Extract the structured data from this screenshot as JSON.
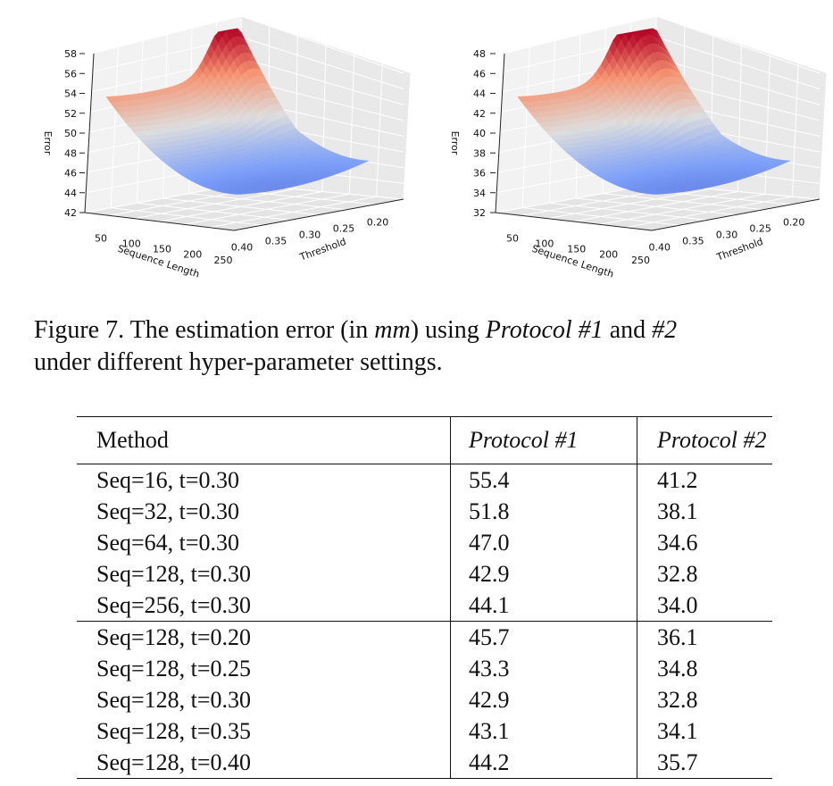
{
  "chart_data": [
    {
      "type": "surface3d",
      "title": "",
      "xlabel": "Sequence Length",
      "ylabel": "Threshold",
      "zlabel": "Error",
      "x_ticks": [
        "50",
        "100",
        "150",
        "200",
        "250"
      ],
      "y_ticks": [
        "0.20",
        "0.25",
        "0.30",
        "0.35",
        "0.40"
      ],
      "z_ticks": [
        "42",
        "44",
        "46",
        "48",
        "50",
        "52",
        "54",
        "56",
        "58"
      ],
      "zlim": [
        42,
        58
      ],
      "colormap": "coolwarm",
      "z_max_approx": 58,
      "z_min_approx": 42.9
    },
    {
      "type": "surface3d",
      "title": "",
      "xlabel": "Sequence Length",
      "ylabel": "Threshold",
      "zlabel": "Error",
      "x_ticks": [
        "50",
        "100",
        "150",
        "200",
        "250"
      ],
      "y_ticks": [
        "0.20",
        "0.25",
        "0.30",
        "0.35",
        "0.40"
      ],
      "z_ticks": [
        "32",
        "34",
        "36",
        "38",
        "40",
        "42",
        "44",
        "46",
        "48"
      ],
      "zlim": [
        32,
        48
      ],
      "colormap": "coolwarm",
      "z_max_approx": 48,
      "z_min_approx": 32.8
    }
  ],
  "caption": {
    "prefix": "Figure 7. The estimation error (in ",
    "unit": "mm",
    "middle": ") using ",
    "p1": "Protocol #1",
    "and": " and ",
    "p2": "#2",
    "line2": "under different hyper-parameter settings."
  },
  "table": {
    "headers": [
      "Method",
      "Protocol #1",
      "Protocol #2"
    ],
    "block1": [
      [
        "Seq=16, t=0.30",
        "55.4",
        "41.2"
      ],
      [
        "Seq=32, t=0.30",
        "51.8",
        "38.1"
      ],
      [
        "Seq=64, t=0.30",
        "47.0",
        "34.6"
      ],
      [
        "Seq=128, t=0.30",
        "42.9",
        "32.8"
      ],
      [
        "Seq=256, t=0.30",
        "44.1",
        "34.0"
      ]
    ],
    "block2": [
      [
        "Seq=128, t=0.20",
        "45.7",
        "36.1"
      ],
      [
        "Seq=128, t=0.25",
        "43.3",
        "34.8"
      ],
      [
        "Seq=128, t=0.30",
        "42.9",
        "32.8"
      ],
      [
        "Seq=128, t=0.35",
        "43.1",
        "34.1"
      ],
      [
        "Seq=128, t=0.40",
        "44.2",
        "35.7"
      ]
    ]
  }
}
